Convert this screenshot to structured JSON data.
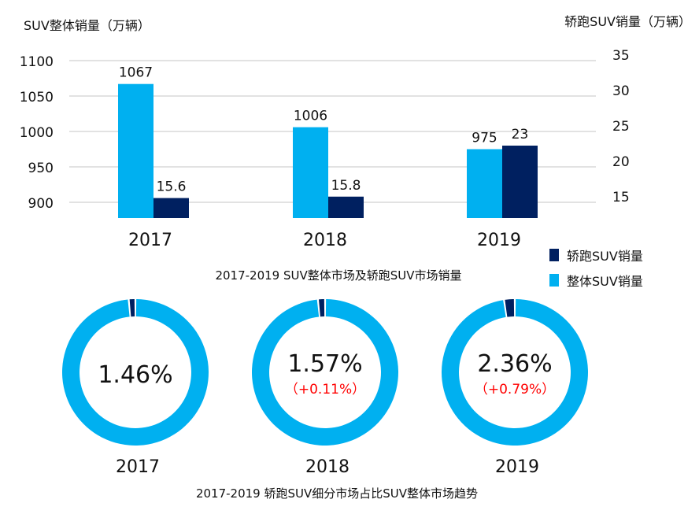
{
  "colors": {
    "overall": "#00b0f0",
    "sports": "#002060",
    "delta": "#ff0000",
    "grid": "#d9d9d9"
  },
  "chart_data": [
    {
      "type": "bar",
      "title": "2017-2019 SUV整体市场及轿跑SUV市场销量",
      "categories": [
        "2017",
        "2018",
        "2019"
      ],
      "ylabel": "SUV整体销量（万辆）",
      "y2label": "轿跑SUV销量（万辆）",
      "yticks": [
        "900",
        "950",
        "1000",
        "1050",
        "1100"
      ],
      "y2ticks": [
        "15",
        "20",
        "25",
        "30",
        "35"
      ],
      "ylim": [
        900,
        1100
      ],
      "y2lim": [
        15,
        35
      ],
      "grid": true,
      "legend_placement": "right",
      "series": [
        {
          "name": "整体SUV销量",
          "axis": "left",
          "values": [
            1067,
            1006,
            975
          ],
          "labels": [
            "1067",
            "1006",
            "975"
          ]
        },
        {
          "name": "轿跑SUV销量",
          "axis": "right",
          "values": [
            15.6,
            15.8,
            23
          ],
          "labels": [
            "15.6",
            "15.8",
            "23"
          ]
        }
      ],
      "legend": [
        {
          "name": "轿跑SUV销量",
          "color": "#002060"
        },
        {
          "name": "整体SUV销量",
          "color": "#00b0f0"
        }
      ]
    },
    {
      "type": "pie",
      "title": "2017-2019 轿跑SUV细分市场占比SUV整体市场趋势",
      "categories": [
        "2017",
        "2018",
        "2019"
      ],
      "shares": [
        1.46,
        1.57,
        2.36
      ],
      "share_labels": [
        "1.46%",
        "1.57%",
        "2.36%"
      ],
      "delta_labels": [
        "",
        "（+0.11%）",
        "（+0.79%）"
      ]
    }
  ]
}
